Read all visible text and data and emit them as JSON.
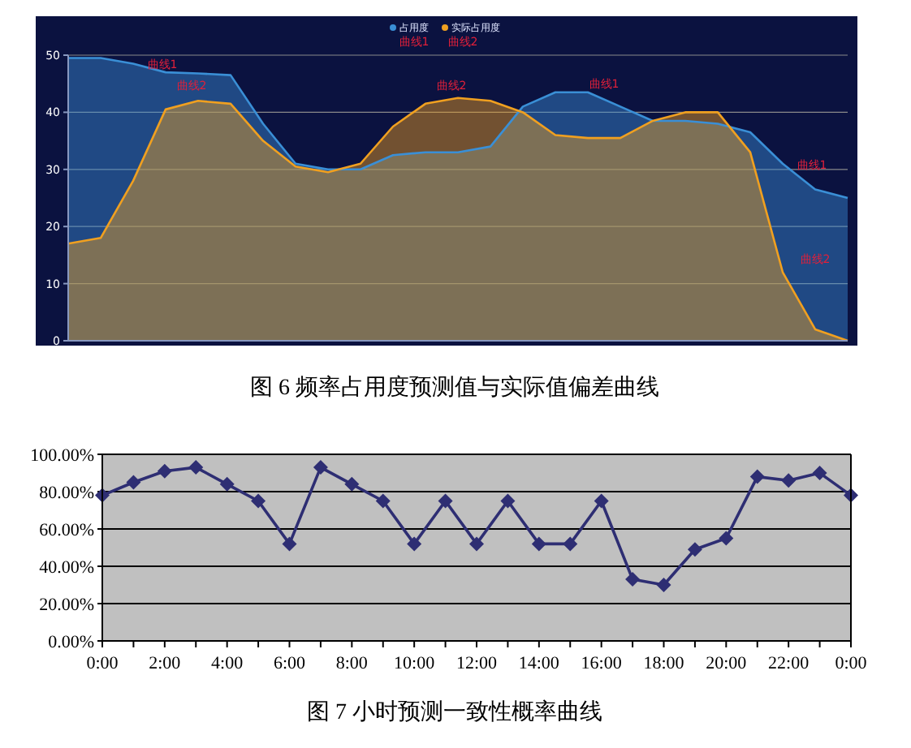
{
  "chart_data": [
    {
      "type": "area",
      "title": "图 6 频率占用度预测值与实际值偏差曲线",
      "categories": [
        null,
        null,
        null,
        null,
        null,
        null,
        null,
        null,
        null,
        null,
        null,
        null,
        null,
        null,
        null,
        null,
        null,
        null,
        null,
        null,
        null,
        null,
        null,
        null,
        null
      ],
      "series": [
        {
          "name": "占用度",
          "color": "#3a8fd6",
          "values": [
            49.5,
            49.5,
            48.5,
            47,
            46.8,
            46.5,
            38,
            31,
            30,
            30,
            32.5,
            33,
            33,
            34,
            41,
            43.5,
            43.5,
            41,
            38.5,
            38.5,
            38,
            36.5,
            31,
            26.5,
            25
          ]
        },
        {
          "name": "实际占用度",
          "color": "#f0a020",
          "values": [
            17,
            18,
            28,
            40.5,
            42,
            41.5,
            35,
            30.5,
            29.5,
            31,
            37.5,
            41.5,
            42.5,
            42,
            40,
            36,
            35.5,
            35.5,
            38.5,
            40,
            40,
            33,
            12,
            2,
            0
          ]
        }
      ],
      "ylim": [
        0,
        50
      ],
      "yticks": [
        0,
        10,
        20,
        30,
        40,
        50
      ],
      "grid": "y",
      "legend": "top",
      "annotations": [
        "曲线1",
        "曲线2",
        "曲线1",
        "曲线2",
        "曲线2",
        "曲线1",
        "曲线1",
        "曲线2"
      ]
    },
    {
      "type": "line",
      "title": "图 7 小时预测一致性概率曲线",
      "x": [
        0,
        1,
        2,
        3,
        4,
        5,
        6,
        7,
        8,
        9,
        10,
        11,
        12,
        13,
        14,
        15,
        16,
        17,
        18,
        19,
        20,
        21,
        22,
        23,
        24
      ],
      "series": [
        {
          "color": "#2e2e73",
          "values": [
            78,
            85,
            91,
            93,
            84,
            75,
            52,
            93,
            84,
            75,
            52,
            75,
            52,
            75,
            52,
            52,
            75,
            33,
            30,
            49,
            55,
            88,
            86,
            90,
            78
          ]
        }
      ],
      "xlim": [
        0,
        24
      ],
      "xticks": [
        {
          "value": 0,
          "label": "0:00"
        },
        {
          "value": 1,
          "label": null
        },
        {
          "value": 2,
          "label": "2:00"
        },
        {
          "value": 3,
          "label": null
        },
        {
          "value": 4,
          "label": "4:00"
        },
        {
          "value": 5,
          "label": null
        },
        {
          "value": 6,
          "label": "6:00"
        },
        {
          "value": 7,
          "label": null
        },
        {
          "value": 8,
          "label": "8:00"
        },
        {
          "value": 9,
          "label": null
        },
        {
          "value": 10,
          "label": "10:00"
        },
        {
          "value": 11,
          "label": null
        },
        {
          "value": 12,
          "label": "12:00"
        },
        {
          "value": 13,
          "label": null
        },
        {
          "value": 14,
          "label": "14:00"
        },
        {
          "value": 15,
          "label": null
        },
        {
          "value": 16,
          "label": "16:00"
        },
        {
          "value": 17,
          "label": null
        },
        {
          "value": 18,
          "label": "18:00"
        },
        {
          "value": 19,
          "label": null
        },
        {
          "value": 20,
          "label": "20:00"
        },
        {
          "value": 21,
          "label": null
        },
        {
          "value": 22,
          "label": "22:00"
        },
        {
          "value": 23,
          "label": null
        },
        {
          "value": 24,
          "label": "0:00"
        }
      ],
      "ylim": [
        0,
        100
      ],
      "yticks": [
        {
          "value": 0,
          "label": "0.00%"
        },
        {
          "value": 20,
          "label": "20.00%"
        },
        {
          "value": 40,
          "label": "40.00%"
        },
        {
          "value": 60,
          "label": "60.00%"
        },
        {
          "value": 80,
          "label": "80.00%"
        },
        {
          "value": 100,
          "label": "100.00%"
        }
      ],
      "grid": "y",
      "marker": "diamond",
      "line_style": "solid"
    }
  ]
}
